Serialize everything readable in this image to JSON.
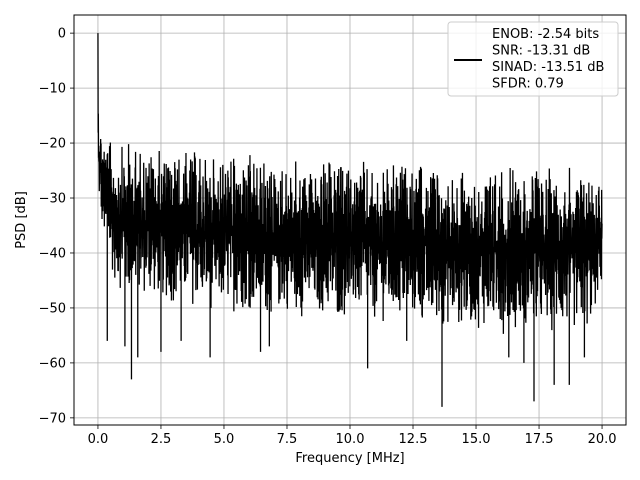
{
  "chart_data": {
    "type": "line",
    "xlabel": "Frequency [MHz]",
    "ylabel": "PSD [dB]",
    "xlim": [
      -0.95,
      20.95
    ],
    "ylim": [
      -71.3,
      3.3
    ],
    "xticks": [
      0.0,
      2.5,
      5.0,
      7.5,
      10.0,
      12.5,
      15.0,
      17.5,
      20.0
    ],
    "xtick_labels": [
      "0.0",
      "2.5",
      "5.0",
      "7.5",
      "10.0",
      "12.5",
      "15.0",
      "17.5",
      "20.0"
    ],
    "yticks": [
      0,
      -10,
      -20,
      -30,
      -40,
      -50,
      -60,
      -70
    ],
    "ytick_labels": [
      "0",
      "−10",
      "−20",
      "−30",
      "−40",
      "−50",
      "−60",
      "−70"
    ],
    "grid": true,
    "legend_position": "top-right",
    "line_color": "#000000",
    "series": [
      {
        "x": [
          0.0,
          0.02,
          0.05,
          0.1,
          0.2,
          0.4,
          0.7,
          1.0,
          1.3,
          1.6,
          2.0,
          2.5,
          3.0,
          3.5,
          4.0,
          4.5,
          5.0,
          5.5,
          6.0,
          6.5,
          7.0,
          7.5,
          8.0,
          8.5,
          9.0,
          9.5,
          10.0,
          10.5,
          11.0,
          11.5,
          12.0,
          12.5,
          13.0,
          13.5,
          14.0,
          14.5,
          15.0,
          15.5,
          16.0,
          16.5,
          17.0,
          17.5,
          18.0,
          18.5,
          19.0,
          19.5,
          20.0
        ],
        "upper": [
          0.0,
          -12,
          -14,
          -15,
          -17,
          -19,
          -20,
          -20,
          -19,
          -20,
          -20,
          -21,
          -21,
          -21,
          -21,
          -22,
          -21,
          -22,
          -22,
          -22,
          -23,
          -23,
          -23,
          -23,
          -23,
          -23,
          -23,
          -23,
          -24,
          -24,
          -23,
          -24,
          -24,
          -24,
          -24,
          -24,
          -24,
          -24,
          -24,
          -24,
          -24,
          -24,
          -24,
          -24,
          -24,
          -23,
          -25
        ],
        "lower": [
          -27,
          -30,
          -32,
          -35,
          -38,
          -42,
          -46,
          -48,
          -50,
          -48,
          -49,
          -49,
          -50,
          -50,
          -50,
          -51,
          -51,
          -51,
          -51,
          -52,
          -52,
          -51,
          -52,
          -52,
          -52,
          -53,
          -52,
          -52,
          -53,
          -53,
          -53,
          -53,
          -54,
          -54,
          -54,
          -54,
          -54,
          -54,
          -55,
          -54,
          -54,
          -55,
          -55,
          -55,
          -55,
          -55,
          -47
        ],
        "dips": [
          [
            0.37,
            -56
          ],
          [
            1.07,
            -57
          ],
          [
            1.33,
            -63
          ],
          [
            1.58,
            -59
          ],
          [
            2.5,
            -58
          ],
          [
            3.3,
            -56
          ],
          [
            4.45,
            -59
          ],
          [
            6.45,
            -58
          ],
          [
            6.8,
            -57
          ],
          [
            10.7,
            -61
          ],
          [
            12.25,
            -56
          ],
          [
            13.65,
            -68
          ],
          [
            16.3,
            -59
          ],
          [
            16.9,
            -60
          ],
          [
            17.3,
            -67
          ],
          [
            18.1,
            -64
          ],
          [
            18.7,
            -64
          ],
          [
            19.3,
            -59
          ]
        ]
      }
    ],
    "legend": {
      "lines": [
        "ENOB: -2.54 bits",
        "SNR: -13.31 dB",
        "SINAD: -13.51 dB",
        "SFDR: 0.79"
      ]
    }
  }
}
